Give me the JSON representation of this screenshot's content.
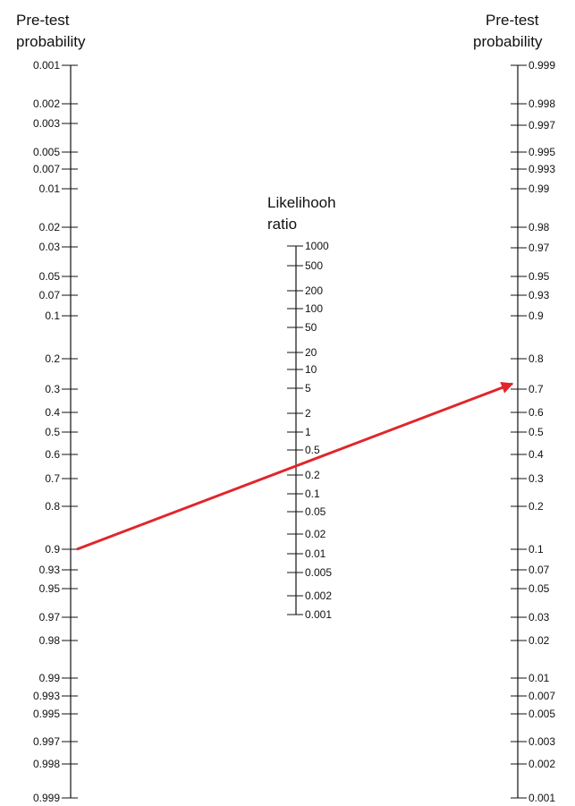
{
  "left_scale": {
    "title_lines": [
      "Pre-test",
      "probability"
    ],
    "ticks": [
      "0.001",
      "0.002",
      "0.003",
      "0.005",
      "0.007",
      "0.01",
      "0.02",
      "0.03",
      "0.05",
      "0.07",
      "0.1",
      "0.2",
      "0.3",
      "0.4",
      "0.5",
      "0.6",
      "0.7",
      "0.8",
      "0.9",
      "0.93",
      "0.95",
      "0.97",
      "0.98",
      "0.99",
      "0.993",
      "0.995",
      "0.997",
      "0.998",
      "0.999"
    ]
  },
  "middle_scale": {
    "title_lines": [
      "Likelihooh",
      "ratio"
    ],
    "ticks": [
      "1000",
      "500",
      "200",
      "100",
      "50",
      "20",
      "10",
      "5",
      "2",
      "1",
      "0.5",
      "0.2",
      "0.1",
      "0.05",
      "0.02",
      "0.01",
      "0.005",
      "0.002",
      "0.001"
    ]
  },
  "right_scale": {
    "title_lines": [
      "Pre-test",
      "probability"
    ],
    "ticks": [
      "0.999",
      "0.998",
      "0.997",
      "0.995",
      "0.993",
      "0.99",
      "0.98",
      "0.97",
      "0.95",
      "0.93",
      "0.9",
      "0.8",
      "0.7",
      "0.6",
      "0.5",
      "0.4",
      "0.3",
      "0.2",
      "0.1",
      "0.07",
      "0.05",
      "0.03",
      "0.02",
      "0.01",
      "0.007",
      "0.005",
      "0.003",
      "0.002",
      "0.001"
    ]
  },
  "arrow": {
    "from_value": "0.9",
    "to_value": "0.7",
    "color": "#e0262a"
  }
}
